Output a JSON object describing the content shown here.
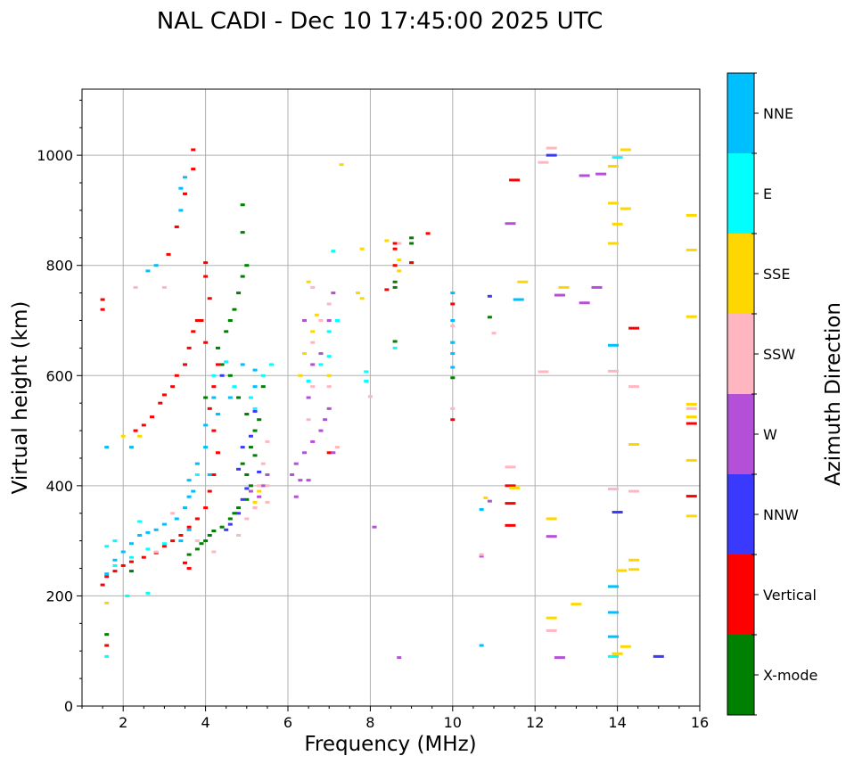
{
  "chart_data": {
    "type": "scatter",
    "title": "NAL CADI - Dec 10 17:45:00 2025 UTC",
    "xlabel": "Frequency (MHz)",
    "ylabel": "Virtual height (km)",
    "xlim": [
      1,
      16
    ],
    "ylim": [
      0,
      1120
    ],
    "xticks": [
      2,
      4,
      6,
      8,
      10,
      12,
      14,
      16
    ],
    "yticks": [
      0,
      200,
      400,
      600,
      800,
      1000
    ],
    "grid": true,
    "colorbar": {
      "label": "Azimuth Direction",
      "categories": [
        {
          "name": "X-mode",
          "color": "#008000"
        },
        {
          "name": "Vertical",
          "color": "#ff0000"
        },
        {
          "name": "NNW",
          "color": "#3a3aff"
        },
        {
          "name": "W",
          "color": "#b44fd8"
        },
        {
          "name": "SSW",
          "color": "#ffb6c1"
        },
        {
          "name": "SSE",
          "color": "#ffd700"
        },
        {
          "name": "E",
          "color": "#00ffff"
        },
        {
          "name": "NNE",
          "color": "#00bfff"
        }
      ]
    },
    "series": [
      {
        "name": "X-mode",
        "points": [
          [
            3.6,
            275
          ],
          [
            3.8,
            285
          ],
          [
            3.9,
            295
          ],
          [
            4.0,
            300
          ],
          [
            4.1,
            310
          ],
          [
            4.2,
            318
          ],
          [
            4.4,
            325
          ],
          [
            4.6,
            340
          ],
          [
            4.7,
            350
          ],
          [
            4.8,
            360
          ],
          [
            5.0,
            375
          ],
          [
            5.1,
            400
          ],
          [
            5.0,
            420
          ],
          [
            4.9,
            440
          ],
          [
            5.1,
            470
          ],
          [
            5.2,
            500
          ],
          [
            5.0,
            530
          ],
          [
            4.8,
            560
          ],
          [
            4.6,
            600
          ],
          [
            4.4,
            620
          ],
          [
            4.3,
            650
          ],
          [
            4.5,
            680
          ],
          [
            4.6,
            700
          ],
          [
            4.7,
            720
          ],
          [
            4.8,
            750
          ],
          [
            4.9,
            780
          ],
          [
            5.0,
            800
          ],
          [
            4.9,
            860
          ],
          [
            4.9,
            910
          ],
          [
            5.2,
            455
          ],
          [
            5.3,
            520
          ],
          [
            5.4,
            580
          ],
          [
            8.6,
            770
          ],
          [
            8.6,
            760
          ],
          [
            8.6,
            662
          ],
          [
            9.0,
            850
          ],
          [
            9.0,
            840
          ],
          [
            9.0,
            805
          ],
          [
            10.9,
            706
          ],
          [
            1.6,
            130
          ],
          [
            2.2,
            245
          ],
          [
            4.0,
            560
          ],
          [
            10.0,
            596
          ]
        ]
      },
      {
        "name": "Vertical",
        "points": [
          [
            1.5,
            220
          ],
          [
            1.6,
            235
          ],
          [
            1.8,
            245
          ],
          [
            2.0,
            255
          ],
          [
            2.2,
            262
          ],
          [
            2.5,
            270
          ],
          [
            2.8,
            278
          ],
          [
            3.0,
            290
          ],
          [
            3.2,
            300
          ],
          [
            3.4,
            310
          ],
          [
            3.6,
            325
          ],
          [
            3.8,
            340
          ],
          [
            4.0,
            360
          ],
          [
            4.1,
            390
          ],
          [
            4.2,
            420
          ],
          [
            4.3,
            460
          ],
          [
            4.2,
            500
          ],
          [
            4.1,
            540
          ],
          [
            4.2,
            580
          ],
          [
            4.3,
            620
          ],
          [
            4.0,
            660
          ],
          [
            3.9,
            700
          ],
          [
            4.1,
            740
          ],
          [
            4.0,
            780
          ],
          [
            4.0,
            805
          ],
          [
            3.5,
            260
          ],
          [
            3.6,
            250
          ],
          [
            2.3,
            500
          ],
          [
            2.5,
            510
          ],
          [
            2.7,
            525
          ],
          [
            2.9,
            550
          ],
          [
            3.0,
            565
          ],
          [
            3.2,
            580
          ],
          [
            3.3,
            600
          ],
          [
            3.5,
            620
          ],
          [
            3.6,
            650
          ],
          [
            3.7,
            680
          ],
          [
            3.8,
            700
          ],
          [
            3.1,
            820
          ],
          [
            3.3,
            870
          ],
          [
            3.5,
            930
          ],
          [
            3.7,
            975
          ],
          [
            3.7,
            1010
          ],
          [
            1.5,
            720
          ],
          [
            1.5,
            738
          ],
          [
            1.6,
            110
          ],
          [
            8.4,
            756
          ],
          [
            8.6,
            840
          ],
          [
            8.6,
            830
          ],
          [
            8.6,
            800
          ],
          [
            9.0,
            805
          ],
          [
            9.4,
            858
          ],
          [
            10.0,
            730
          ],
          [
            10.0,
            520
          ],
          [
            11.4,
            400
          ],
          [
            11.4,
            368
          ],
          [
            11.4,
            328
          ],
          [
            11.5,
            955
          ],
          [
            14.4,
            686
          ],
          [
            15.8,
            513
          ],
          [
            15.8,
            381
          ],
          [
            7.0,
            460
          ]
        ]
      },
      {
        "name": "NNW",
        "points": [
          [
            4.5,
            320
          ],
          [
            4.6,
            330
          ],
          [
            4.8,
            350
          ],
          [
            4.9,
            375
          ],
          [
            5.0,
            395
          ],
          [
            4.8,
            430
          ],
          [
            4.9,
            470
          ],
          [
            5.1,
            490
          ],
          [
            5.2,
            535
          ],
          [
            12.4,
            1000
          ],
          [
            10.9,
            744
          ],
          [
            14.0,
            352
          ],
          [
            15.0,
            90
          ],
          [
            4.4,
            600
          ],
          [
            5.3,
            425
          ]
        ]
      },
      {
        "name": "W",
        "points": [
          [
            5.2,
            360
          ],
          [
            5.3,
            380
          ],
          [
            5.4,
            400
          ],
          [
            5.5,
            420
          ],
          [
            6.1,
            420
          ],
          [
            6.2,
            440
          ],
          [
            6.4,
            460
          ],
          [
            6.6,
            480
          ],
          [
            6.8,
            500
          ],
          [
            6.9,
            520
          ],
          [
            7.0,
            540
          ],
          [
            7.1,
            460
          ],
          [
            6.5,
            410
          ],
          [
            6.2,
            380
          ],
          [
            6.3,
            410
          ],
          [
            6.5,
            560
          ],
          [
            6.6,
            620
          ],
          [
            6.8,
            640
          ],
          [
            7.0,
            700
          ],
          [
            7.1,
            750
          ],
          [
            8.1,
            325
          ],
          [
            10.7,
            272
          ],
          [
            11.4,
            876
          ],
          [
            12.4,
            308
          ],
          [
            12.6,
            746
          ],
          [
            12.6,
            88
          ],
          [
            13.2,
            732
          ],
          [
            13.5,
            760
          ],
          [
            13.2,
            963
          ],
          [
            13.6,
            966
          ],
          [
            10.9,
            372
          ],
          [
            8.7,
            88
          ],
          [
            5.1,
            390
          ],
          [
            6.4,
            700
          ]
        ]
      },
      {
        "name": "SSW",
        "points": [
          [
            5.0,
            340
          ],
          [
            5.2,
            360
          ],
          [
            5.5,
            370
          ],
          [
            5.3,
            400
          ],
          [
            5.4,
            440
          ],
          [
            5.5,
            480
          ],
          [
            6.5,
            520
          ],
          [
            6.6,
            580
          ],
          [
            6.6,
            660
          ],
          [
            6.8,
            700
          ],
          [
            7.0,
            730
          ],
          [
            2.3,
            760
          ],
          [
            3.0,
            760
          ],
          [
            3.2,
            350
          ],
          [
            2.8,
            280
          ],
          [
            3.8,
            300
          ],
          [
            4.2,
            280
          ],
          [
            4.8,
            310
          ],
          [
            5.5,
            400
          ],
          [
            8.7,
            840
          ],
          [
            10.0,
            540
          ],
          [
            10.0,
            690
          ],
          [
            10.7,
            275
          ],
          [
            11.0,
            677
          ],
          [
            11.4,
            434
          ],
          [
            12.2,
            607
          ],
          [
            12.2,
            987
          ],
          [
            12.4,
            1013
          ],
          [
            12.4,
            137
          ],
          [
            13.9,
            394
          ],
          [
            13.9,
            608
          ],
          [
            14.4,
            390
          ],
          [
            14.4,
            580
          ],
          [
            15.8,
            540
          ],
          [
            6.6,
            760
          ],
          [
            7.0,
            580
          ],
          [
            8.0,
            562
          ],
          [
            7.2,
            470
          ]
        ]
      },
      {
        "name": "SSE",
        "points": [
          [
            5.2,
            370
          ],
          [
            5.3,
            390
          ],
          [
            6.4,
            640
          ],
          [
            6.6,
            680
          ],
          [
            6.5,
            770
          ],
          [
            6.7,
            710
          ],
          [
            7.0,
            600
          ],
          [
            7.3,
            983
          ],
          [
            7.7,
            750
          ],
          [
            7.8,
            740
          ],
          [
            7.8,
            830
          ],
          [
            8.4,
            845
          ],
          [
            8.7,
            810
          ],
          [
            8.7,
            790
          ],
          [
            10.8,
            378
          ],
          [
            11.5,
            396
          ],
          [
            11.7,
            770
          ],
          [
            12.4,
            340
          ],
          [
            12.4,
            160
          ],
          [
            12.7,
            760
          ],
          [
            13.0,
            185
          ],
          [
            13.9,
            980
          ],
          [
            13.9,
            840
          ],
          [
            13.9,
            913
          ],
          [
            14.0,
            875
          ],
          [
            14.0,
            95
          ],
          [
            14.1,
            246
          ],
          [
            14.2,
            1010
          ],
          [
            14.2,
            903
          ],
          [
            14.2,
            108
          ],
          [
            14.4,
            265
          ],
          [
            14.4,
            248
          ],
          [
            14.4,
            475
          ],
          [
            15.8,
            891
          ],
          [
            15.8,
            828
          ],
          [
            15.8,
            707
          ],
          [
            15.8,
            548
          ],
          [
            15.8,
            525
          ],
          [
            15.8,
            446
          ],
          [
            15.8,
            345
          ],
          [
            1.6,
            187
          ],
          [
            2.0,
            490
          ],
          [
            2.4,
            490
          ],
          [
            6.3,
            600
          ]
        ]
      },
      {
        "name": "E",
        "points": [
          [
            1.6,
            290
          ],
          [
            1.8,
            300
          ],
          [
            2.2,
            270
          ],
          [
            2.6,
            285
          ],
          [
            3.0,
            295
          ],
          [
            3.8,
            420
          ],
          [
            4.2,
            600
          ],
          [
            4.5,
            625
          ],
          [
            4.7,
            580
          ],
          [
            5.1,
            560
          ],
          [
            5.2,
            540
          ],
          [
            5.4,
            600
          ],
          [
            5.6,
            620
          ],
          [
            6.8,
            620
          ],
          [
            7.0,
            635
          ],
          [
            7.0,
            680
          ],
          [
            7.1,
            826
          ],
          [
            7.9,
            607
          ],
          [
            7.9,
            590
          ],
          [
            8.6,
            650
          ],
          [
            10.0,
            660
          ],
          [
            13.9,
            90
          ],
          [
            14.0,
            996
          ],
          [
            1.6,
            90
          ],
          [
            2.6,
            205
          ],
          [
            2.1,
            200
          ],
          [
            2.4,
            335
          ],
          [
            1.8,
            255
          ],
          [
            6.5,
            590
          ],
          [
            7.2,
            700
          ]
        ]
      },
      {
        "name": "NNE",
        "points": [
          [
            1.6,
            240
          ],
          [
            1.8,
            265
          ],
          [
            2.0,
            280
          ],
          [
            2.2,
            295
          ],
          [
            2.4,
            310
          ],
          [
            2.6,
            315
          ],
          [
            2.8,
            320
          ],
          [
            3.0,
            330
          ],
          [
            3.3,
            340
          ],
          [
            3.5,
            360
          ],
          [
            3.6,
            380
          ],
          [
            3.7,
            390
          ],
          [
            3.6,
            410
          ],
          [
            3.8,
            440
          ],
          [
            4.0,
            470
          ],
          [
            4.0,
            510
          ],
          [
            4.2,
            560
          ],
          [
            4.3,
            530
          ],
          [
            4.6,
            560
          ],
          [
            5.2,
            580
          ],
          [
            5.2,
            610
          ],
          [
            3.4,
            300
          ],
          [
            3.6,
            320
          ],
          [
            2.2,
            470
          ],
          [
            1.6,
            470
          ],
          [
            2.6,
            790
          ],
          [
            2.8,
            800
          ],
          [
            3.4,
            900
          ],
          [
            3.4,
            940
          ],
          [
            3.5,
            960
          ],
          [
            4.9,
            620
          ],
          [
            10.0,
            750
          ],
          [
            10.0,
            700
          ],
          [
            10.0,
            660
          ],
          [
            10.0,
            640
          ],
          [
            10.0,
            615
          ],
          [
            10.7,
            357
          ],
          [
            10.7,
            110
          ],
          [
            11.6,
            738
          ],
          [
            13.9,
            655
          ],
          [
            13.9,
            217
          ],
          [
            13.9,
            170
          ],
          [
            13.9,
            126
          ],
          [
            4.1,
            420
          ]
        ]
      }
    ]
  }
}
